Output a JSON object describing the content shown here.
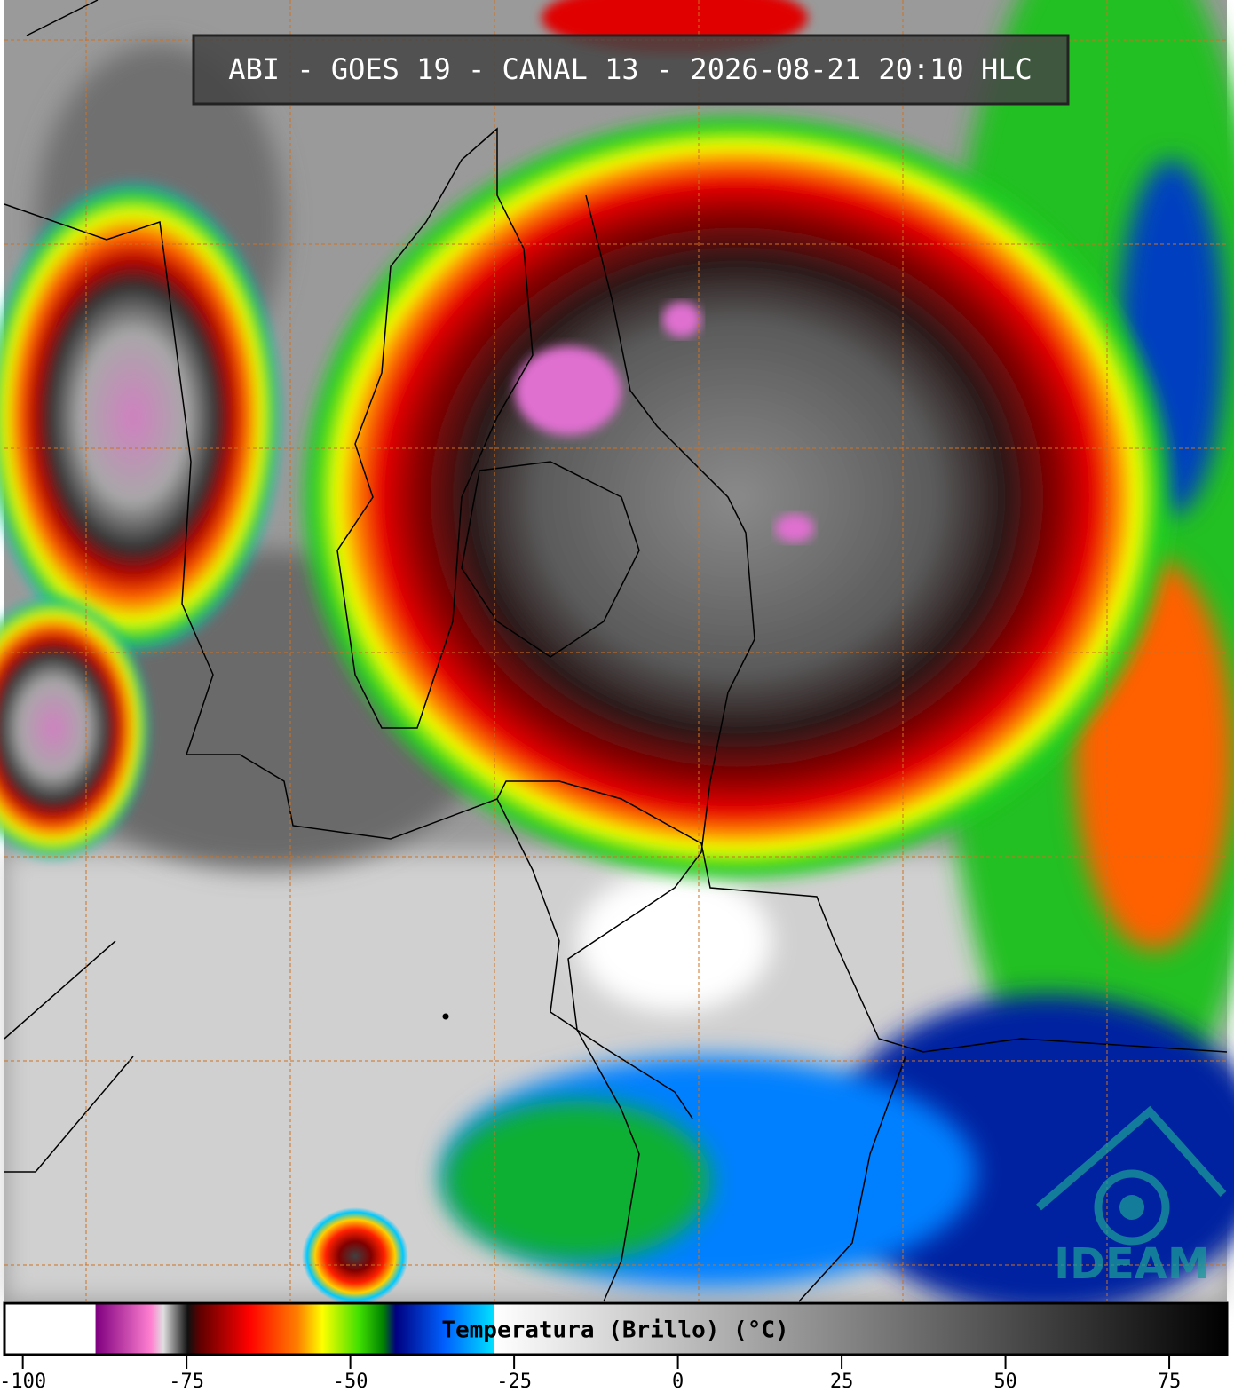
{
  "title": "ABI - GOES 19 - CANAL 13 - 2026-08-21 20:10 HLC",
  "logo": "IDEAM",
  "colorbar": {
    "label": "Temperatura (Brillo) (°C)",
    "range": [
      -102.8,
      83.8
    ],
    "ticks": [
      -100,
      -75,
      -50,
      -25,
      0,
      25,
      50,
      75
    ]
  }
}
